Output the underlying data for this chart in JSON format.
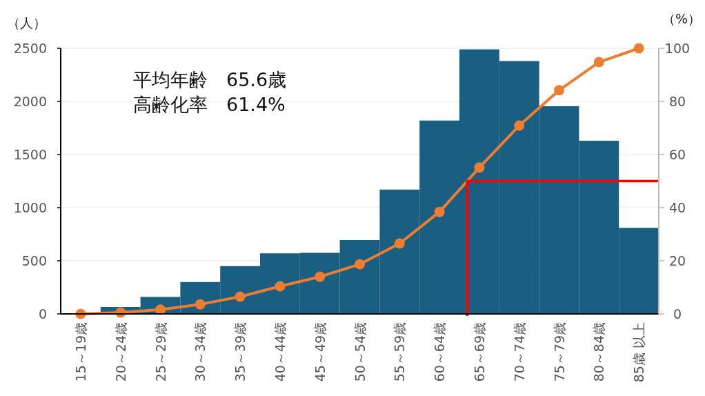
{
  "chart_data": {
    "type": "bar",
    "ylabel": "（人）",
    "y2label": "（%）",
    "categories": [
      "15～19歳",
      "20～24歳",
      "25～29歳",
      "30～34歳",
      "35～39歳",
      "40～44歳",
      "45～49歳",
      "50～54歳",
      "55～59歳",
      "60～64歳",
      "65～69歳",
      "70～74歳",
      "75～79歳",
      "80～84歳",
      "85歳 以上"
    ],
    "series": [
      {
        "color": "#1a5f82",
        "values": [
          0,
          65,
          160,
          300,
          450,
          570,
          575,
          695,
          1170,
          1820,
          2490,
          2380,
          1955,
          1630,
          810
        ]
      },
      {
        "type": "line",
        "axis": "y2",
        "color": "#ed7d31",
        "marker": "circle",
        "values": [
          0,
          0.5,
          1.6,
          3.6,
          6.5,
          10.4,
          14.0,
          18.7,
          26.5,
          38.4,
          55.1,
          70.9,
          84.2,
          94.8,
          100
        ]
      }
    ],
    "ylim": [
      0,
      2500
    ],
    "yticks": [
      0,
      500,
      1000,
      1500,
      2000,
      2500
    ],
    "y2lim": [
      0,
      100
    ],
    "y2ticks": [
      0,
      20,
      40,
      60,
      80,
      100
    ],
    "grid": "y",
    "ref_lines": [
      {
        "axis": "y2",
        "value": 50,
        "color": "#ff0000"
      }
    ],
    "annotations": [
      "平均年齢　65.6歳",
      "高齢化率　61.4%"
    ]
  }
}
